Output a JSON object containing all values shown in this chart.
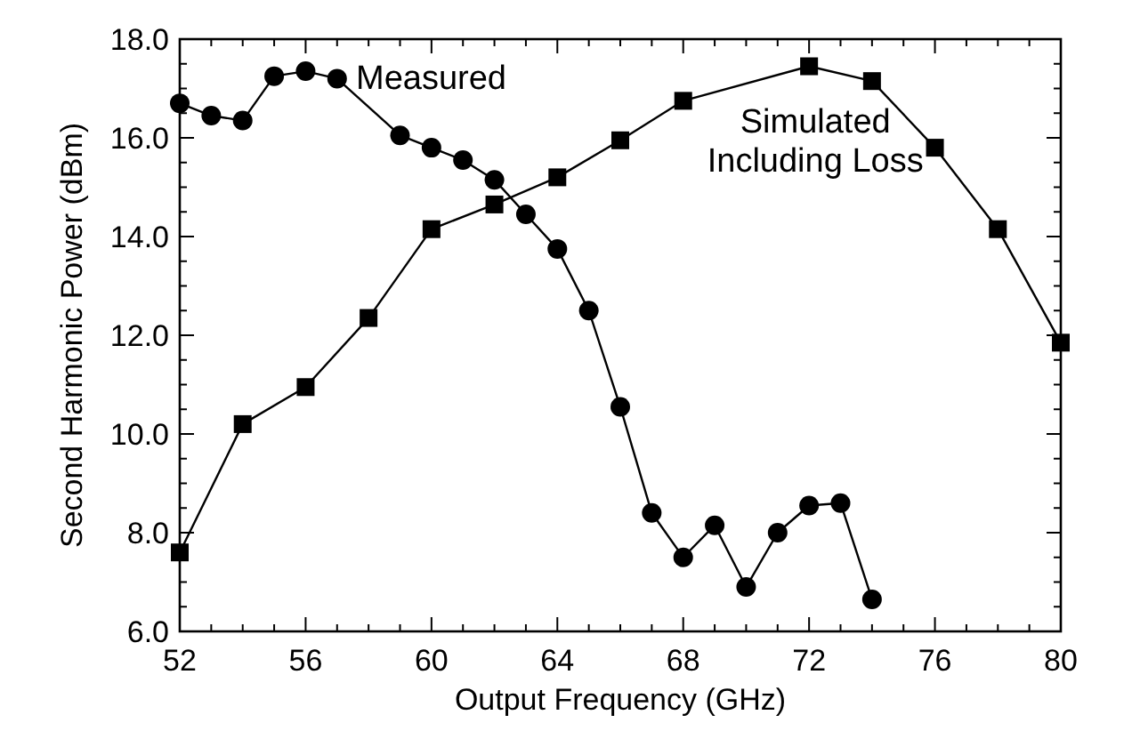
{
  "chart_data": {
    "type": "line",
    "xlabel": "Output Frequency (GHz)",
    "ylabel": "Second Harmonic Power (dBm)",
    "xlim": [
      52,
      80
    ],
    "ylim": [
      6,
      18
    ],
    "xticks": [
      52,
      {
        "value": 53,
        "label": null
      },
      {
        "value": 54,
        "label": null
      },
      {
        "value": 55,
        "label": null
      },
      56,
      {
        "value": 57,
        "label": null
      },
      {
        "value": 58,
        "label": null
      },
      {
        "value": 59,
        "label": null
      },
      60,
      {
        "value": 61,
        "label": null
      },
      {
        "value": 62,
        "label": null
      },
      {
        "value": 63,
        "label": null
      },
      64,
      {
        "value": 65,
        "label": null
      },
      {
        "value": 66,
        "label": null
      },
      {
        "value": 67,
        "label": null
      },
      68,
      {
        "value": 69,
        "label": null
      },
      {
        "value": 70,
        "label": null
      },
      {
        "value": 71,
        "label": null
      },
      72,
      {
        "value": 73,
        "label": null
      },
      {
        "value": 74,
        "label": null
      },
      {
        "value": 75,
        "label": null
      },
      76,
      {
        "value": 77,
        "label": null
      },
      {
        "value": 78,
        "label": null
      },
      {
        "value": 79,
        "label": null
      },
      80
    ],
    "yticks": [
      {
        "value": 6,
        "label": "6.0"
      },
      {
        "value": 6.5,
        "label": null
      },
      {
        "value": 7,
        "label": null
      },
      {
        "value": 7.5,
        "label": null
      },
      {
        "value": 8,
        "label": "8.0"
      },
      {
        "value": 8.5,
        "label": null
      },
      {
        "value": 9,
        "label": null
      },
      {
        "value": 9.5,
        "label": null
      },
      {
        "value": 10,
        "label": "10.0"
      },
      {
        "value": 10.5,
        "label": null
      },
      {
        "value": 11,
        "label": null
      },
      {
        "value": 11.5,
        "label": null
      },
      {
        "value": 12,
        "label": "12.0"
      },
      {
        "value": 12.5,
        "label": null
      },
      {
        "value": 13,
        "label": null
      },
      {
        "value": 13.5,
        "label": null
      },
      {
        "value": 14,
        "label": "14.0"
      },
      {
        "value": 14.5,
        "label": null
      },
      {
        "value": 15,
        "label": null
      },
      {
        "value": 15.5,
        "label": null
      },
      {
        "value": 16,
        "label": "16.0"
      },
      {
        "value": 16.5,
        "label": null
      },
      {
        "value": 17,
        "label": null
      },
      {
        "value": 17.5,
        "label": null
      },
      {
        "value": 18,
        "label": "18.0"
      }
    ],
    "grid": false,
    "legend": "top",
    "line_style": "solid",
    "series": [
      {
        "name": "Measured",
        "color": "#000000",
        "marker": "circle",
        "x": [
          52,
          53,
          54,
          55,
          56,
          57,
          59,
          60,
          61,
          62,
          63,
          64,
          65,
          66,
          67,
          68,
          69,
          70,
          71,
          72,
          73,
          74
        ],
        "values": [
          16.7,
          16.45,
          16.35,
          17.25,
          17.35,
          17.2,
          16.05,
          15.8,
          15.55,
          15.15,
          14.45,
          13.75,
          12.5,
          10.55,
          8.4,
          7.5,
          8.15,
          6.9,
          8.0,
          8.55,
          8.6,
          6.65
        ]
      },
      {
        "name": "Simulated Including Loss",
        "color": "#000000",
        "marker": "square",
        "x": [
          52,
          54,
          56,
          58,
          60,
          62,
          64,
          66,
          68,
          72,
          74,
          76,
          78,
          80
        ],
        "values": [
          7.6,
          10.2,
          10.95,
          12.35,
          14.15,
          14.65,
          15.2,
          15.95,
          16.75,
          17.45,
          17.15,
          15.8,
          14.15,
          11.85
        ]
      }
    ]
  }
}
